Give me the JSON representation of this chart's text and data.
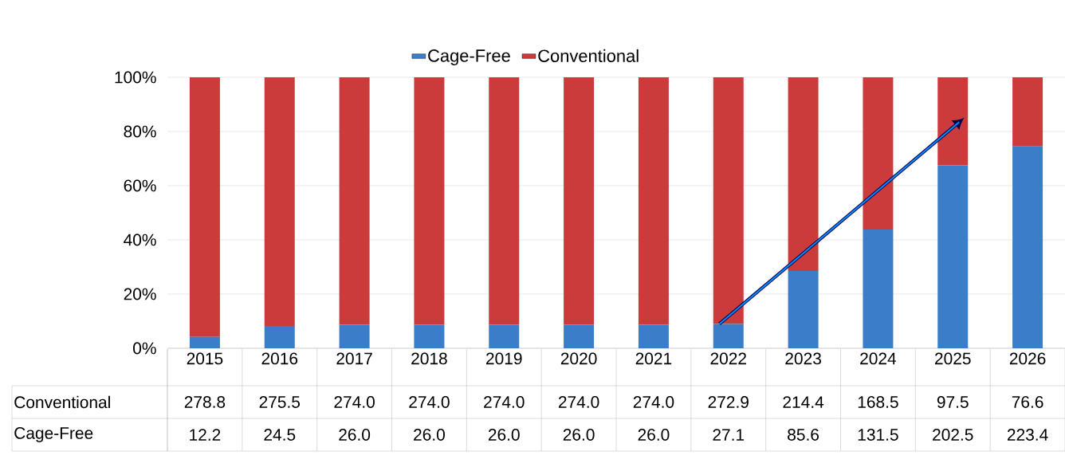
{
  "chart_data": {
    "type": "bar",
    "stacked": true,
    "categories": [
      "2015",
      "2016",
      "2017",
      "2018",
      "2019",
      "2020",
      "2021",
      "2022",
      "2023",
      "2024",
      "2025",
      "2026"
    ],
    "series": [
      {
        "name": "Cage-Free",
        "color": "#3b7dc8",
        "values": [
          4.2,
          8.2,
          8.7,
          8.7,
          8.7,
          8.7,
          8.7,
          9.0,
          28.5,
          43.8,
          67.5,
          74.5
        ]
      },
      {
        "name": "Conventional",
        "color": "#cc3b3b",
        "values": [
          95.8,
          91.8,
          91.3,
          91.3,
          91.3,
          91.3,
          91.3,
          91.0,
          71.5,
          56.2,
          32.5,
          25.5
        ]
      }
    ],
    "annotations": [
      "278.8",
      "275.5",
      "274.0",
      "274.0",
      "274.0",
      "274.0",
      "274.0",
      "272.9",
      "214.4",
      "168.5",
      "97.5",
      "76.6",
      "12.2",
      "24.5",
      "26.0",
      "26.0",
      "26.0",
      "26.0",
      "26.0",
      "27.1",
      "85.6",
      "131.5",
      "202.5",
      "223.4"
    ],
    "ylim": [
      0,
      100
    ],
    "yticks": [
      {
        "value": 0,
        "label": "0%"
      },
      {
        "value": 20,
        "label": "20%"
      },
      {
        "value": 40,
        "label": "40%"
      },
      {
        "value": 60,
        "label": "60%"
      },
      {
        "value": 80,
        "label": "80%"
      },
      {
        "value": 100,
        "label": "100%"
      }
    ],
    "grid": "y",
    "legend": "top"
  }
}
